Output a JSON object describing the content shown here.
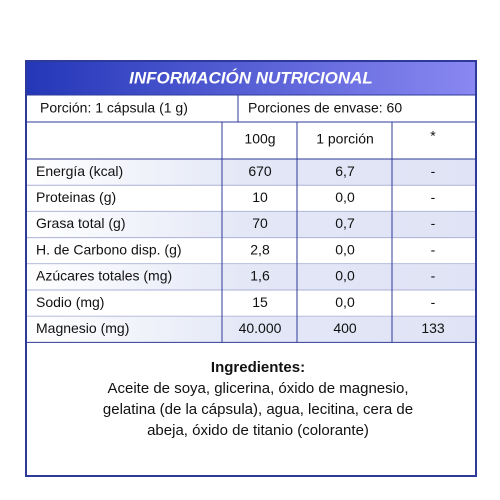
{
  "header": {
    "title": "INFORMACIÓN NUTRICIONAL"
  },
  "serving": [
    "Porción: 1 cápsula (1 g)",
    "Porciones de envase: 60"
  ],
  "table": {
    "columns": [
      "100g",
      "1 porción",
      "*"
    ],
    "rows": [
      [
        "Energía (kcal)",
        "670",
        "6,7",
        "-"
      ],
      [
        "Proteinas (g)",
        "10",
        "0,0",
        "-"
      ],
      [
        "Grasa total (g)",
        "70",
        "0,7",
        "-"
      ],
      [
        "H. de Carbono disp. (g)",
        "2,8",
        "0,0",
        "-"
      ],
      [
        "Azúcares totales (mg)",
        "1,6",
        "0,0",
        "-"
      ],
      [
        "Sodio (mg)",
        "15",
        "0,0",
        "-"
      ],
      [
        "Magnesio (mg)",
        "40.000",
        "400",
        "133"
      ]
    ]
  },
  "ingredients": {
    "title": "Ingredientes:",
    "lines": [
      "Aceite de soya, glicerina, óxido de magnesio,",
      "gelatina (de la cápsula), agua, lecitina, cera de",
      "abeja, óxido de titanio (colorante)"
    ]
  }
}
